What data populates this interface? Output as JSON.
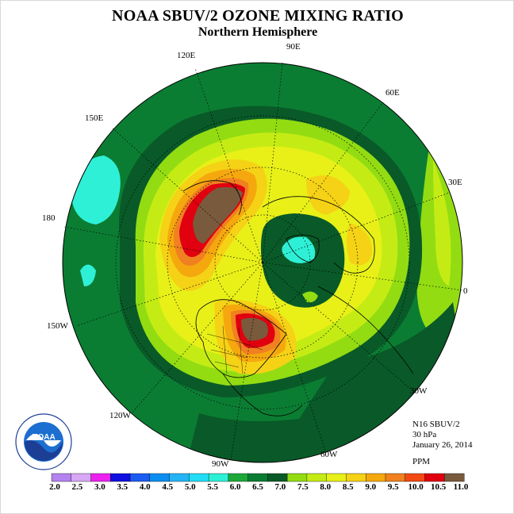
{
  "title": "NOAA SBUV/2 OZONE MIXING RATIO",
  "subtitle": "Northern Hemisphere",
  "meridian_labels": {
    "m120E": "120E",
    "m90E": "90E",
    "m60E": "60E",
    "m150E": "150E",
    "m30E": "30E",
    "m180": "180",
    "m0": "0",
    "m150W": "150W",
    "m30W": "30W",
    "m120W": "120W",
    "m60W": "60W",
    "m90W": "90W"
  },
  "info": {
    "satellite": "N16 SBUV/2",
    "level": "30 hPa",
    "date": "January 26, 2014",
    "units": "PPM"
  },
  "logo": {
    "text": "NOAA",
    "ring_text": "NATIONAL OCEANIC AND ATMOSPHERIC ADMINISTRATION · U.S. DEPARTMENT OF COMMERCE"
  },
  "colorbar": {
    "colors": [
      "#b482f0",
      "#d7a8f5",
      "#ee22ee",
      "#1010e0",
      "#1c5cf0",
      "#0b8ef0",
      "#25b4f5",
      "#22ddf5",
      "#2ef0d6",
      "#1da83a",
      "#0b7d33",
      "#095a28",
      "#93dc12",
      "#c4ec14",
      "#e8f018",
      "#f5d216",
      "#f5a80e",
      "#f08020",
      "#f24a12",
      "#e00010",
      "#7a5a3c"
    ],
    "ticks": [
      "2.0",
      "2.5",
      "3.0",
      "3.5",
      "4.0",
      "4.5",
      "5.0",
      "5.5",
      "6.0",
      "6.5",
      "7.0",
      "7.5",
      "8.0",
      "8.5",
      "9.0",
      "9.5",
      "10.0",
      "10.5",
      "11.0"
    ]
  }
}
